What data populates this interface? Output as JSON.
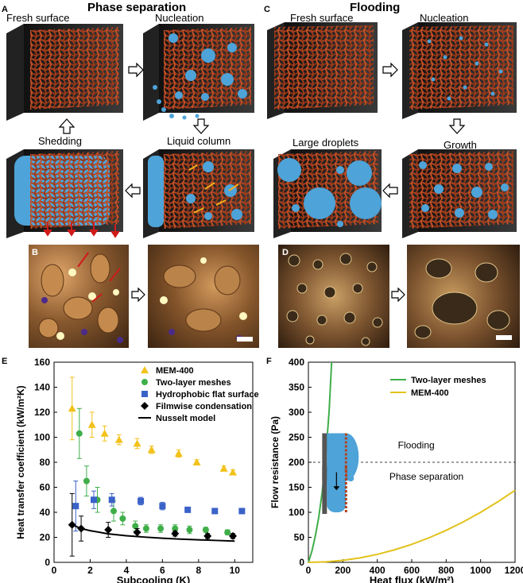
{
  "figure": {
    "titles": {
      "left": "Phase separation",
      "right": "Flooding"
    },
    "panel_letters": {
      "A": "A",
      "B": "B",
      "C": "C",
      "D": "D",
      "E": "E",
      "F": "F"
    },
    "schematic_left": {
      "fresh": "Fresh surface",
      "nucleation": "Nucleation",
      "shedding": "Shedding",
      "liquid_column": "Liquid column"
    },
    "schematic_right": {
      "fresh": "Fresh surface",
      "nucleation": "Nucleation",
      "large_droplets": "Large droplets",
      "growth": "Growth"
    },
    "colors": {
      "mesh": "#b0421e",
      "water": "#4ea3d8",
      "substrate": "#2a2a2a",
      "mem": "#f2c21b",
      "twolayer": "#3fae49",
      "hydrophobic": "#3a62c8",
      "filmwise": "#000000"
    }
  },
  "chart_data": [
    {
      "type": "scatter",
      "xlabel": "Subcooling (K)",
      "ylabel": "Heat transfer coefficient (kW/m²K)",
      "xlim": [
        0,
        11
      ],
      "ylim": [
        0,
        160
      ],
      "xticks": [
        "0",
        "2",
        "4",
        "6",
        "8",
        "10"
      ],
      "yticks": [
        "0",
        "20",
        "40",
        "60",
        "80",
        "100",
        "120",
        "140",
        "160"
      ],
      "legend": [
        "MEM-400",
        "Two-layer meshes",
        "Hydrophobic flat surface",
        "Filmwise condensation",
        "Nusselt model"
      ],
      "legend_position": "top-right",
      "series": [
        {
          "name": "MEM-400",
          "marker": "triangle",
          "color": "#f2c21b",
          "x": [
            1.0,
            2.1,
            2.8,
            3.6,
            4.6,
            5.4,
            6.9,
            7.9,
            9.4,
            9.9
          ],
          "y": [
            123,
            110,
            103,
            98,
            95,
            90,
            87,
            80,
            75,
            72
          ],
          "err": [
            25,
            10,
            6,
            4,
            4,
            3,
            3,
            2,
            2,
            2
          ]
        },
        {
          "name": "Two-layer meshes",
          "marker": "circle",
          "color": "#3fae49",
          "x": [
            1.4,
            1.8,
            2.4,
            3.3,
            3.8,
            4.5,
            5.1,
            5.9,
            6.7,
            7.5,
            8.4,
            9.6
          ],
          "y": [
            103,
            65,
            50,
            41,
            35,
            29,
            27,
            27,
            27,
            26,
            26,
            24
          ],
          "err": [
            20,
            12,
            10,
            8,
            5,
            4,
            3,
            3,
            3,
            3,
            2,
            2
          ]
        },
        {
          "name": "Hydrophobic flat surface",
          "marker": "square",
          "color": "#3a62c8",
          "x": [
            1.2,
            2.2,
            3.2,
            4.8,
            6.0,
            7.4,
            8.9,
            10.4
          ],
          "y": [
            45,
            50,
            50,
            49,
            45,
            42,
            41,
            41
          ],
          "err": [
            20,
            7,
            5,
            3,
            3,
            2,
            2,
            2
          ]
        },
        {
          "name": "Filmwise condensation",
          "marker": "diamond",
          "color": "#000000",
          "x": [
            1.0,
            1.5,
            3.0,
            4.6,
            6.7,
            8.5,
            9.9
          ],
          "y": [
            30,
            27,
            26,
            24,
            23,
            21,
            21
          ],
          "err": [
            25,
            10,
            6,
            3,
            2,
            2,
            2
          ]
        },
        {
          "name": "Nusselt model",
          "marker": "line",
          "color": "#000000",
          "x": [
            1.0,
            1.5,
            2.0,
            3.0,
            4.0,
            5.0,
            6.0,
            7.0,
            8.0,
            9.0,
            10.0
          ],
          "y": [
            30,
            27,
            25.3,
            22.8,
            21.3,
            20.2,
            19.3,
            18.6,
            18.0,
            17.5,
            17.0
          ]
        }
      ]
    },
    {
      "type": "line",
      "xlabel": "Heat flux (kW/m²)",
      "ylabel": "Flow resistance (Pa)",
      "xlim": [
        0,
        1200
      ],
      "ylim": [
        0,
        400
      ],
      "xticks": [
        "0",
        "200",
        "400",
        "600",
        "800",
        "1000",
        "1200"
      ],
      "yticks": [
        "0",
        "50",
        "100",
        "150",
        "200",
        "250",
        "300",
        "350",
        "400"
      ],
      "legend": [
        "Two-layer meshes",
        "MEM-400"
      ],
      "legend_position": "top-right",
      "threshold": 200,
      "annotations": {
        "flooding": "Flooding",
        "phase_separation": "Phase separation"
      },
      "series": [
        {
          "name": "Two-layer meshes",
          "color": "#3fae49",
          "x": [
            0,
            20,
            40,
            60,
            80,
            100,
            120,
            135
          ],
          "y": [
            0,
            22,
            52,
            90,
            140,
            210,
            300,
            400
          ]
        },
        {
          "name": "MEM-400",
          "color": "#e2c21a",
          "x": [
            0,
            100,
            200,
            300,
            400,
            500,
            600,
            700,
            800,
            900,
            1000,
            1100,
            1200
          ],
          "y": [
            0,
            1,
            4,
            9,
            16,
            25,
            36,
            49,
            64,
            81,
            100,
            121,
            144
          ]
        }
      ]
    }
  ]
}
